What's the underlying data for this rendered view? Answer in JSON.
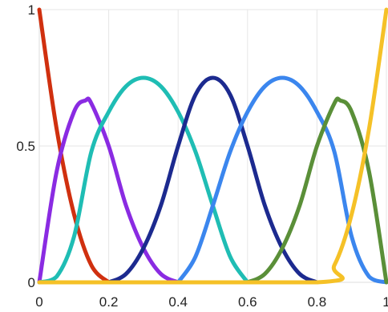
{
  "chart_data": {
    "type": "line",
    "title": "",
    "xlabel": "",
    "ylabel": "",
    "xlim": [
      0,
      1
    ],
    "ylim": [
      0,
      1
    ],
    "grid": true,
    "x_ticks": [
      0,
      0.2,
      0.4,
      0.6,
      0.8,
      1
    ],
    "x_tick_labels": [
      "0",
      "0.2",
      "0.4",
      "0.6",
      "0.8",
      "1"
    ],
    "y_ticks": [
      0,
      0.5,
      1
    ],
    "y_tick_labels": [
      "0",
      "0.5",
      "1"
    ],
    "series": [
      {
        "color": "#d0300f",
        "x": [
          0,
          0.05,
          0.1,
          0.15,
          0.2
        ],
        "y": [
          1,
          0.5625,
          0.25,
          0.0625,
          0
        ]
      },
      {
        "color": "#8a2be2",
        "x": [
          0,
          0.05,
          0.1,
          0.133,
          0.15,
          0.2,
          0.25,
          0.3,
          0.35,
          0.4
        ],
        "y": [
          0,
          0.406,
          0.625,
          0.667,
          0.656,
          0.5,
          0.281,
          0.125,
          0.031,
          0
        ]
      },
      {
        "color": "#1fbdb4",
        "x": [
          0,
          0.05,
          0.1,
          0.15,
          0.2,
          0.25,
          0.3,
          0.35,
          0.4,
          0.45,
          0.5,
          0.55,
          0.6
        ],
        "y": [
          0,
          0.021,
          0.167,
          0.479,
          0.625,
          0.719,
          0.75,
          0.719,
          0.625,
          0.479,
          0.281,
          0.094,
          0
        ]
      },
      {
        "color": "#1c2a8f",
        "x": [
          0.2,
          0.25,
          0.3,
          0.35,
          0.4,
          0.45,
          0.5,
          0.55,
          0.6,
          0.65,
          0.7,
          0.75,
          0.8
        ],
        "y": [
          0,
          0.031,
          0.125,
          0.281,
          0.5,
          0.688,
          0.75,
          0.688,
          0.5,
          0.281,
          0.125,
          0.031,
          0
        ]
      },
      {
        "color": "#3b86ee",
        "x": [
          0.4,
          0.45,
          0.5,
          0.55,
          0.6,
          0.65,
          0.7,
          0.75,
          0.8,
          0.85,
          0.9,
          0.95,
          1
        ],
        "y": [
          0,
          0.094,
          0.281,
          0.479,
          0.625,
          0.719,
          0.75,
          0.719,
          0.625,
          0.479,
          0.167,
          0.021,
          0
        ]
      },
      {
        "color": "#5a8f38",
        "x": [
          0.6,
          0.65,
          0.7,
          0.75,
          0.8,
          0.85,
          0.867,
          0.9,
          0.95,
          1
        ],
        "y": [
          0,
          0.031,
          0.125,
          0.281,
          0.5,
          0.656,
          0.667,
          0.625,
          0.406,
          0
        ]
      },
      {
        "color": "#f5c127",
        "x": [
          0,
          0.8,
          0.85,
          0.9,
          0.95,
          1
        ],
        "y": [
          0,
          0,
          0.0625,
          0.25,
          0.5625,
          1
        ]
      }
    ]
  }
}
